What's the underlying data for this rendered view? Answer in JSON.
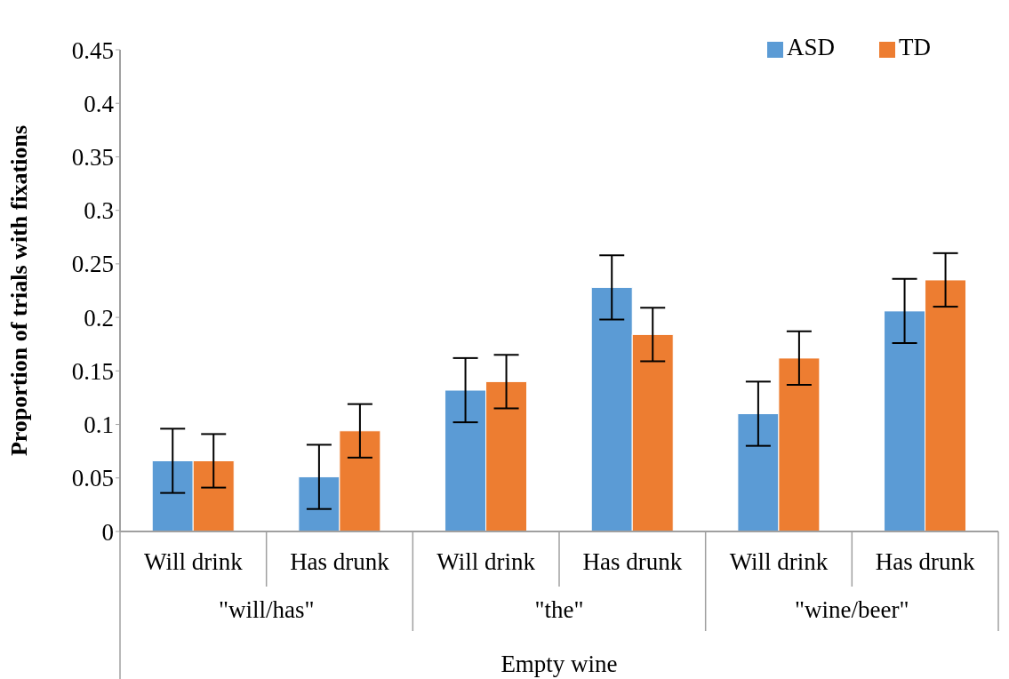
{
  "chart_data": {
    "type": "bar",
    "ylabel": "Proportion of trials with fixations",
    "xlabel": "Empty wine",
    "categories": [
      "Will drink",
      "Has drunk",
      "Will drink",
      "Has drunk",
      "Will drink",
      "Has drunk"
    ],
    "annotations": [
      "\"will/has\"",
      "\"the\"",
      "\"wine/beer\""
    ],
    "series": [
      {
        "name": "ASD",
        "color": "#5b9bd5",
        "values": [
          0.066,
          0.051,
          0.132,
          0.228,
          0.11,
          0.206
        ],
        "errors": [
          0.03,
          0.03,
          0.03,
          0.03,
          0.03,
          0.03
        ]
      },
      {
        "name": "TD",
        "color": "#ed7d31",
        "values": [
          0.066,
          0.094,
          0.14,
          0.184,
          0.162,
          0.235
        ],
        "errors": [
          0.025,
          0.025,
          0.025,
          0.025,
          0.025,
          0.025
        ]
      }
    ],
    "ylim": [
      0,
      0.45
    ],
    "yticks": [
      0,
      0.05,
      0.1,
      0.15,
      0.2,
      0.25,
      0.3,
      0.35,
      0.4,
      0.45
    ],
    "grid": false,
    "legend": "top right"
  }
}
